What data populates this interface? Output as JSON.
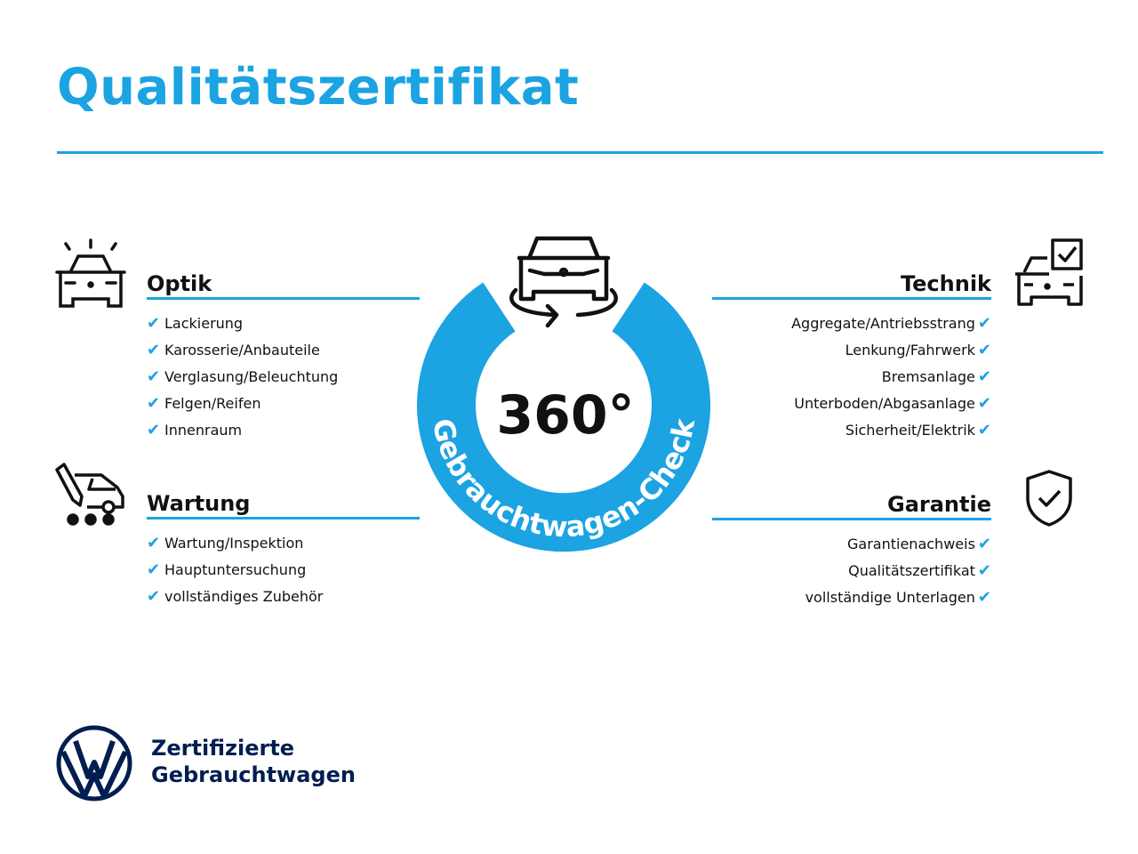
{
  "title": "Qualitätszertifikat",
  "accent_color": "#1ba3e2",
  "brand_color": "#001e50",
  "badge": {
    "number": "360°",
    "ring_text": "Gebrauchtwagen-Check",
    "icon": "car-rotate-icon"
  },
  "sections": {
    "optik": {
      "heading": "Optik",
      "icon": "car-lights-icon",
      "items": [
        "Lackierung",
        "Karosserie/Anbauteile",
        "Verglasung/Beleuchtung",
        "Felgen/Reifen",
        "Innenraum"
      ]
    },
    "wartung": {
      "heading": "Wartung",
      "icon": "service-van-icon",
      "items": [
        "Wartung/Inspektion",
        "Hauptuntersuchung",
        "vollständiges Zubehör"
      ]
    },
    "technik": {
      "heading": "Technik",
      "icon": "car-checkbox-icon",
      "items": [
        "Aggregate/Antriebsstrang",
        "Lenkung/Fahrwerk",
        "Bremsanlage",
        "Unterboden/Abgasanlage",
        "Sicherheit/Elektrik"
      ]
    },
    "garantie": {
      "heading": "Garantie",
      "icon": "shield-check-icon",
      "items": [
        "Garantienachweis",
        "Qualitätszertifikat",
        "vollständige Unterlagen"
      ]
    }
  },
  "check_glyph": "✔",
  "footer": {
    "line1": "Zertifizierte",
    "line2": "Gebrauchtwagen",
    "logo": "VW"
  }
}
